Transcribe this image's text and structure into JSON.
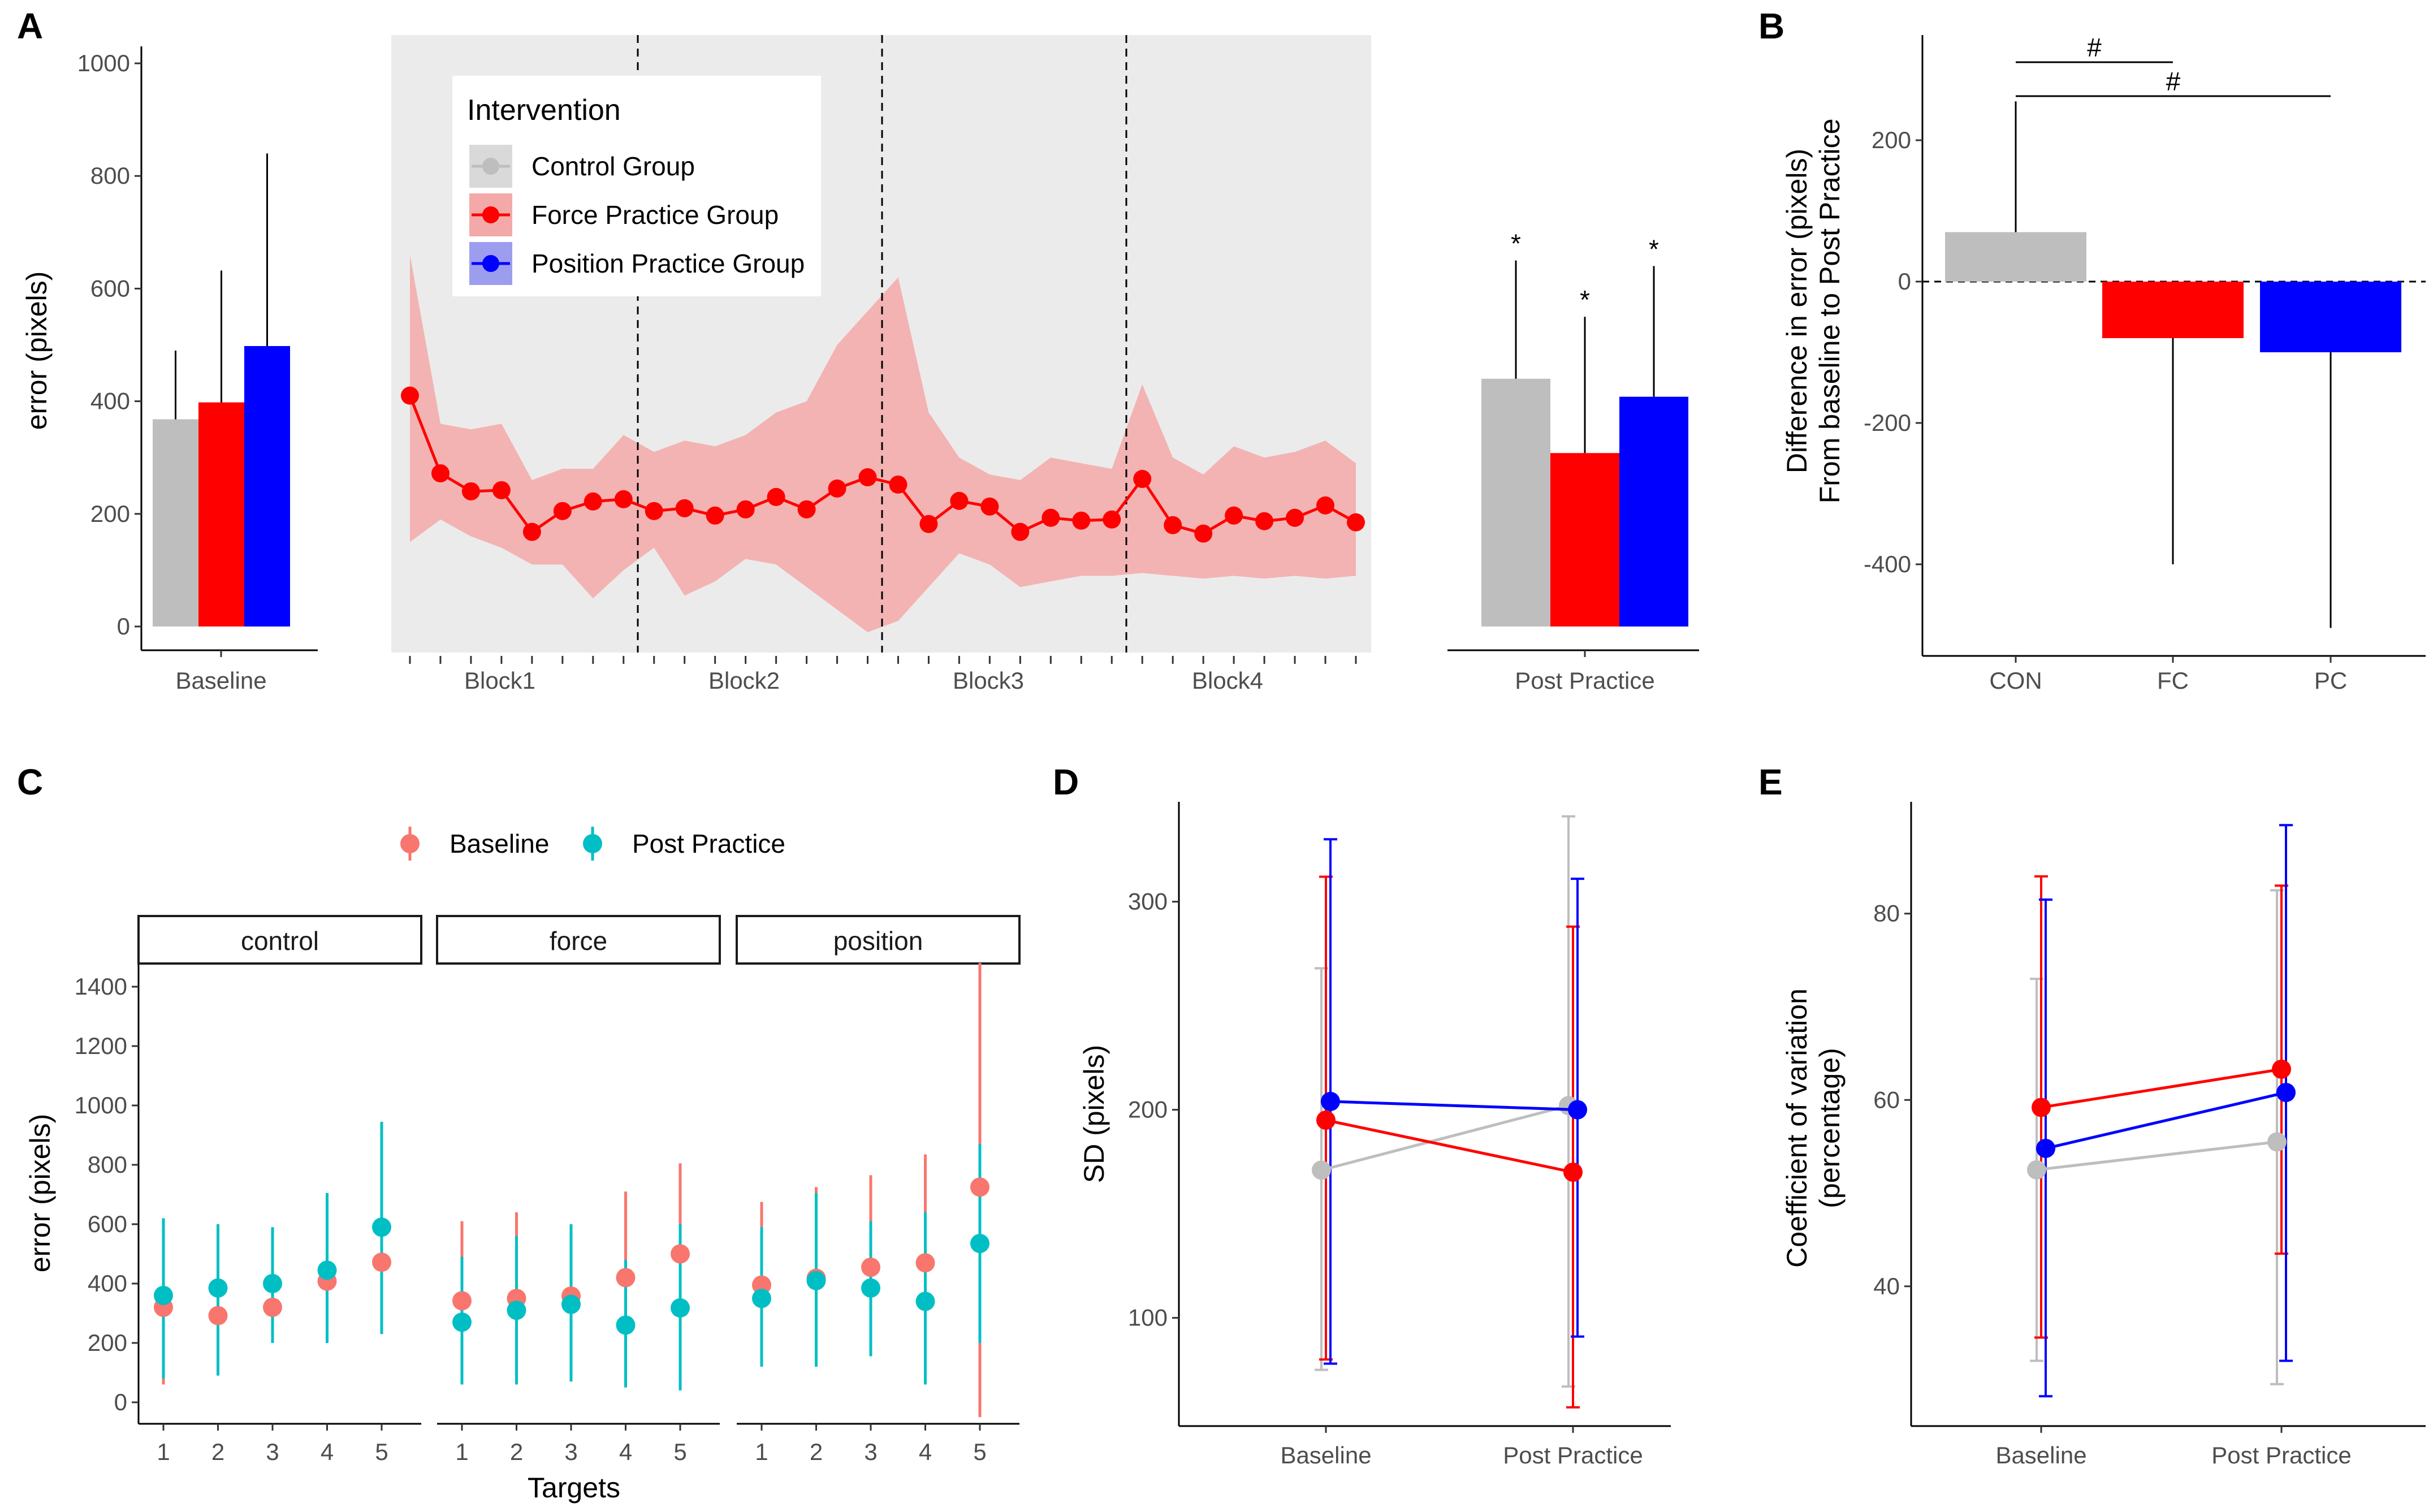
{
  "chart_data": [
    {
      "panel": "A",
      "type": "bar+line",
      "ylabel": "error (pixels)",
      "yticks": [
        0,
        200,
        400,
        600,
        800,
        1000
      ],
      "ylim": [
        0,
        1050
      ],
      "baseline": {
        "category": "Baseline",
        "bars": [
          {
            "group": "Control Group",
            "value": 368,
            "error_upper": 490,
            "color": "#bebebe"
          },
          {
            "group": "Force Practice Group",
            "value": 398,
            "error_upper": 632,
            "color": "#ff0000"
          },
          {
            "group": "Position Practice Group",
            "value": 498,
            "error_upper": 840,
            "color": "#0000ff"
          }
        ]
      },
      "practice": {
        "blocks": [
          "Block1",
          "Block2",
          "Block3",
          "Block4"
        ],
        "series_name": "Force Practice Group",
        "values": [
          410,
          272,
          240,
          242,
          168,
          205,
          222,
          226,
          205,
          210,
          197,
          208,
          230,
          208,
          245,
          265,
          252,
          182,
          223,
          213,
          168,
          193,
          188,
          190,
          262,
          180,
          165,
          197,
          187,
          193,
          215,
          185
        ],
        "ribbon_upper": [
          660,
          360,
          350,
          360,
          260,
          280,
          280,
          340,
          310,
          330,
          320,
          340,
          380,
          400,
          500,
          560,
          620,
          380,
          300,
          270,
          260,
          300,
          290,
          280,
          430,
          300,
          270,
          320,
          300,
          310,
          330,
          290
        ],
        "ribbon_lower": [
          150,
          190,
          160,
          140,
          110,
          110,
          50,
          100,
          140,
          55,
          80,
          120,
          110,
          70,
          30,
          -10,
          10,
          70,
          130,
          110,
          70,
          80,
          90,
          90,
          95,
          90,
          85,
          90,
          85,
          90,
          85,
          90
        ],
        "color": "#ff0000"
      },
      "post_practice": {
        "category": "Post Practice",
        "bars": [
          {
            "group": "Control Group",
            "value": 440,
            "error_upper": 650,
            "color": "#bebebe",
            "annotation": "*"
          },
          {
            "group": "Force Practice Group",
            "value": 308,
            "error_upper": 550,
            "color": "#ff0000",
            "annotation": "*"
          },
          {
            "group": "Position Practice Group",
            "value": 408,
            "error_upper": 640,
            "color": "#0000ff",
            "annotation": "*"
          }
        ]
      },
      "legend": {
        "title": "Intervention",
        "entries": [
          "Control Group",
          "Force Practice Group",
          "Position Practice Group"
        ],
        "placement": "top-left of practice panel"
      }
    },
    {
      "panel": "B",
      "type": "bar",
      "ylabel": "Difference in error (pixels)",
      "ylabel2": "From baseline to Post Practice",
      "categories": [
        "CON",
        "FC",
        "PC"
      ],
      "values": [
        70,
        -80,
        -100
      ],
      "error_ends": [
        255,
        -400,
        -490
      ],
      "colors": [
        "#bebebe",
        "#ff0000",
        "#0000ff"
      ],
      "yticks": [
        -400,
        -200,
        0,
        200
      ],
      "ylim": [
        -530,
        350
      ],
      "significance": [
        {
          "from": "CON",
          "to": "FC",
          "label": "#"
        },
        {
          "from": "CON",
          "to": "PC",
          "label": "#"
        }
      ]
    },
    {
      "panel": "C",
      "type": "pointrange",
      "ylabel": "error (pixels)",
      "xlabel": "Targets",
      "ylim": [
        -50,
        1480
      ],
      "yticks": [
        0,
        200,
        400,
        600,
        800,
        1000,
        1200,
        1400
      ],
      "facets": [
        "control",
        "force",
        "position"
      ],
      "targets": [
        "1",
        "2",
        "3",
        "4",
        "5"
      ],
      "legend": [
        {
          "name": "Baseline",
          "color": "#f8766d"
        },
        {
          "name": "Post Practice",
          "color": "#00bfc4"
        }
      ],
      "baseline": {
        "control": {
          "mean": [
            320,
            292,
            320,
            408,
            472
          ],
          "lo": [
            60,
            95,
            205,
            360,
            410
          ],
          "hi": [
            550,
            500,
            440,
            440,
            520
          ]
        },
        "force": {
          "mean": [
            342,
            350,
            358,
            420,
            500
          ],
          "lo": [
            120,
            70,
            130,
            150,
            200
          ],
          "hi": [
            610,
            640,
            590,
            710,
            805
          ]
        },
        "position": {
          "mean": [
            395,
            418,
            455,
            470,
            725
          ],
          "lo": [
            200,
            130,
            220,
            120,
            -50
          ],
          "hi": [
            675,
            725,
            765,
            835,
            1480
          ]
        }
      },
      "post_practice": {
        "control": {
          "mean": [
            360,
            385,
            400,
            445,
            590
          ],
          "lo": [
            80,
            90,
            200,
            200,
            230
          ],
          "hi": [
            620,
            600,
            590,
            705,
            945
          ]
        },
        "force": {
          "mean": [
            270,
            310,
            330,
            260,
            318
          ],
          "lo": [
            60,
            60,
            70,
            50,
            40
          ],
          "hi": [
            490,
            560,
            600,
            480,
            600
          ]
        },
        "position": {
          "mean": [
            350,
            410,
            385,
            340,
            535
          ],
          "lo": [
            120,
            120,
            155,
            60,
            200
          ],
          "hi": [
            590,
            705,
            610,
            640,
            870
          ]
        }
      }
    },
    {
      "panel": "D",
      "type": "line",
      "ylabel": "SD (pixels)",
      "categories": [
        "Baseline",
        "Post Practice"
      ],
      "ylim": [
        48,
        348
      ],
      "yticks": [
        100,
        200,
        300
      ],
      "series": [
        {
          "name": "Control",
          "color": "#bebebe",
          "values": [
            171,
            202
          ],
          "lo": [
            75,
            67
          ],
          "hi": [
            268,
            341
          ]
        },
        {
          "name": "Force",
          "color": "#ff0000",
          "values": [
            195,
            170
          ],
          "lo": [
            80,
            57
          ],
          "hi": [
            312,
            288
          ]
        },
        {
          "name": "Position",
          "color": "#0000ff",
          "values": [
            204,
            200
          ],
          "lo": [
            78,
            91
          ],
          "hi": [
            330,
            311
          ]
        }
      ]
    },
    {
      "panel": "E",
      "type": "line",
      "ylabel": "Coefficient of variation",
      "ylabel2": "(percentage)",
      "categories": [
        "Baseline",
        "Post Practice"
      ],
      "ylim": [
        25,
        92
      ],
      "yticks": [
        40,
        60,
        80
      ],
      "series": [
        {
          "name": "Control",
          "color": "#bebebe",
          "values": [
            52.5,
            55.5
          ],
          "lo": [
            32,
            29.5
          ],
          "hi": [
            73,
            82.5
          ]
        },
        {
          "name": "Force",
          "color": "#ff0000",
          "values": [
            59.2,
            63.3
          ],
          "lo": [
            34.5,
            43.5
          ],
          "hi": [
            84,
            83
          ]
        },
        {
          "name": "Position",
          "color": "#0000ff",
          "values": [
            54.8,
            60.8
          ],
          "lo": [
            28.2,
            32
          ],
          "hi": [
            81.5,
            89.5
          ]
        }
      ]
    }
  ],
  "labels": {
    "panels": [
      "A",
      "B",
      "C",
      "D",
      "E"
    ],
    "a_baseline": "Baseline",
    "a_post": "Post Practice",
    "star": "*",
    "hash": "#"
  }
}
